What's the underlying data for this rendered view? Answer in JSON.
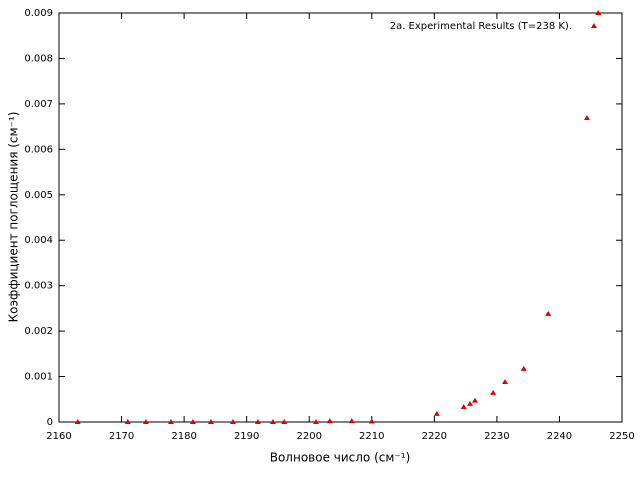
{
  "chart_data": {
    "type": "scatter",
    "xlabel": "Волновое число (см⁻¹)",
    "ylabel": "Коэффициент поглощения (см⁻¹)",
    "legend": "top right",
    "series": [
      {
        "name": "2a. Experimental Results (T=238 K).",
        "color": "#e00000",
        "x": [
          2163.0,
          2171.0,
          2173.9,
          2177.9,
          2181.4,
          2184.3,
          2187.8,
          2191.8,
          2194.2,
          2196.0,
          2201.1,
          2203.3,
          2206.8,
          2210.0,
          2220.4,
          2224.7,
          2225.7,
          2226.5,
          2229.4,
          2231.3,
          2234.3,
          2238.2,
          2244.4,
          2246.2
        ],
        "values": [
          0,
          0,
          0,
          0,
          0,
          0,
          0,
          0,
          0,
          0,
          0,
          2e-05,
          2e-05,
          1e-05,
          0.00018,
          0.00033,
          0.0004,
          0.00047,
          0.00064,
          0.00088,
          0.00117,
          0.00238,
          0.00669,
          0.009
        ]
      }
    ],
    "xlim": [
      2160,
      2250
    ],
    "xticks": [
      2160,
      2170,
      2180,
      2190,
      2200,
      2210,
      2220,
      2230,
      2240,
      2250
    ],
    "ylim": [
      0,
      0.009
    ],
    "yticks": [
      0,
      0.001,
      0.002,
      0.003,
      0.004,
      0.005,
      0.006,
      0.007,
      0.008,
      0.009
    ]
  }
}
